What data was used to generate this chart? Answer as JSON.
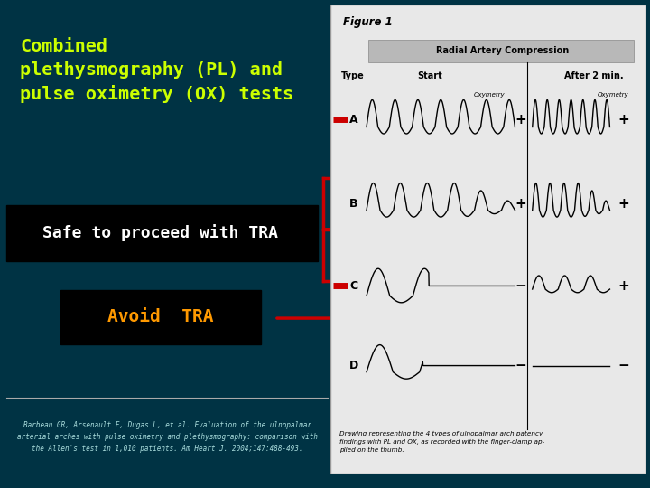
{
  "bg_color": "#006666",
  "bg_dark": "#003344",
  "title_text": "Combined\nplethysmography (PL) and\npulse oximetry (OX) tests",
  "title_color": "#ccff00",
  "safe_text": "Safe to proceed with TRA",
  "safe_color": "#ffffff",
  "avoid_text": "Avoid  TRA",
  "avoid_color": "#ff9900",
  "citation_text": "Barbeau GR, Arsenault F, Dugas L, et al. Evaluation of the ulnopalmar\narterial arches with pulse oximetry and plethysmography: comparison with\nthe Allen's test in 1,010 patients. Am Heart J. 2004;147:488-493.",
  "citation_color": "#aadddd",
  "arrow_color": "#cc0000",
  "figure_bg": "#e8e8e8"
}
